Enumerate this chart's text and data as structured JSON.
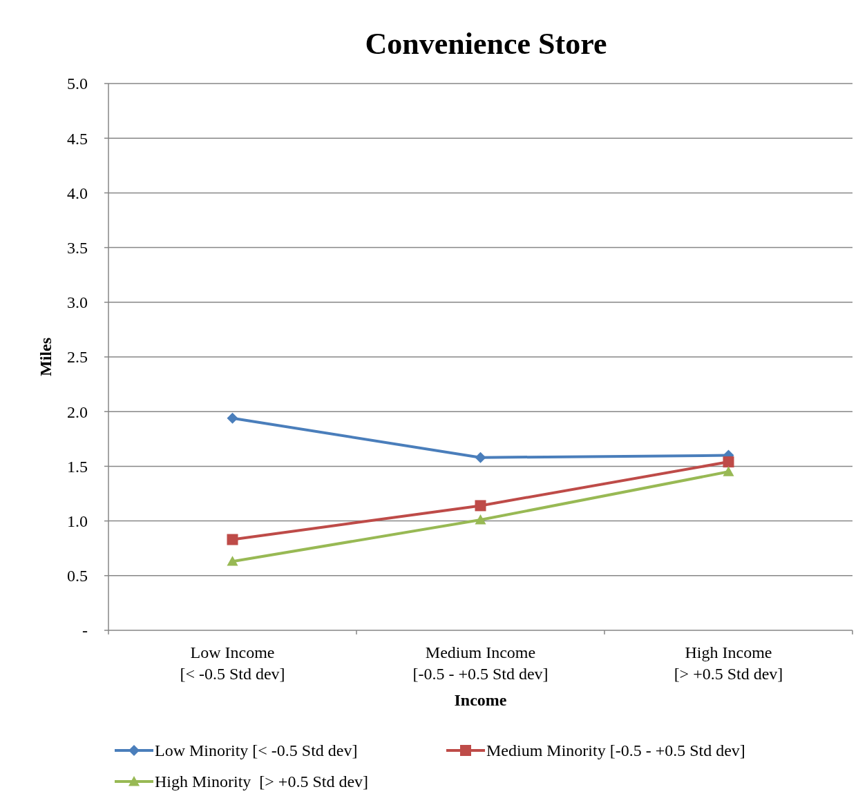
{
  "chart_data": {
    "type": "line",
    "title": "Convenience Store",
    "xlabel": "Income",
    "ylabel": "Miles",
    "categories": [
      "Low Income\n[< -0.5 Std dev]",
      "Medium Income\n[-0.5 - +0.5 Std dev]",
      "High Income\n[> +0.5 Std dev]"
    ],
    "series": [
      {
        "name": "Low Minority [< -0.5 Std dev]",
        "color": "#4a7ebb",
        "marker": "diamond",
        "values": [
          1.94,
          1.58,
          1.6
        ]
      },
      {
        "name": "Medium Minority [-0.5 - +0.5 Std dev]",
        "color": "#be4b48",
        "marker": "square",
        "values": [
          0.83,
          1.14,
          1.54
        ]
      },
      {
        "name": "High Minority  [> +0.5 Std dev]",
        "color": "#98b954",
        "marker": "triangle",
        "values": [
          0.63,
          1.01,
          1.45
        ]
      }
    ],
    "ylim": [
      0,
      5
    ],
    "yticks": [
      {
        "value": 0,
        "label": "-"
      },
      {
        "value": 0.5,
        "label": "0.5"
      },
      {
        "value": 1,
        "label": "1.0"
      },
      {
        "value": 1.5,
        "label": "1.5"
      },
      {
        "value": 2,
        "label": "2.0"
      },
      {
        "value": 2.5,
        "label": "2.5"
      },
      {
        "value": 3,
        "label": "3.0"
      },
      {
        "value": 3.5,
        "label": "3.5"
      },
      {
        "value": 4,
        "label": "4.0"
      },
      {
        "value": 4.5,
        "label": "4.5"
      },
      {
        "value": 5,
        "label": "5.0"
      }
    ],
    "grid": "y",
    "legend": "bottom",
    "line_style": "solid"
  }
}
